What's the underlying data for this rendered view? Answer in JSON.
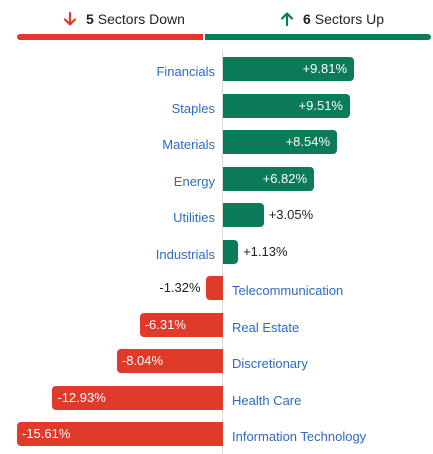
{
  "summary": {
    "down": {
      "count": "5",
      "label": "Sectors Down",
      "icon": "arrow-down-icon",
      "color": "#e03a2b"
    },
    "up": {
      "count": "6",
      "label": "Sectors Up",
      "icon": "arrow-up-icon",
      "color": "#0b7b5a"
    }
  },
  "colors": {
    "positive": "#0b7b5a",
    "negative": "#e03a2b",
    "category_text": "#2d6bc4"
  },
  "chart_data": {
    "type": "bar",
    "orientation": "horizontal",
    "unit": "%",
    "categories": [
      "Financials",
      "Staples",
      "Materials",
      "Energy",
      "Utilities",
      "Industrials",
      "Telecommunication",
      "Real Estate",
      "Discretionary",
      "Health Care",
      "Information Technology"
    ],
    "values": [
      9.81,
      9.51,
      8.54,
      6.82,
      3.05,
      1.13,
      -1.32,
      -6.31,
      -8.04,
      -12.93,
      -15.61
    ],
    "labels": [
      "+9.81%",
      "+9.51%",
      "+8.54%",
      "+6.82%",
      "+3.05%",
      "+1.13%",
      "-1.32%",
      "-6.31%",
      "-8.04%",
      "-12.93%",
      "-15.61%"
    ],
    "title": "",
    "xlabel": "",
    "ylabel": ""
  }
}
